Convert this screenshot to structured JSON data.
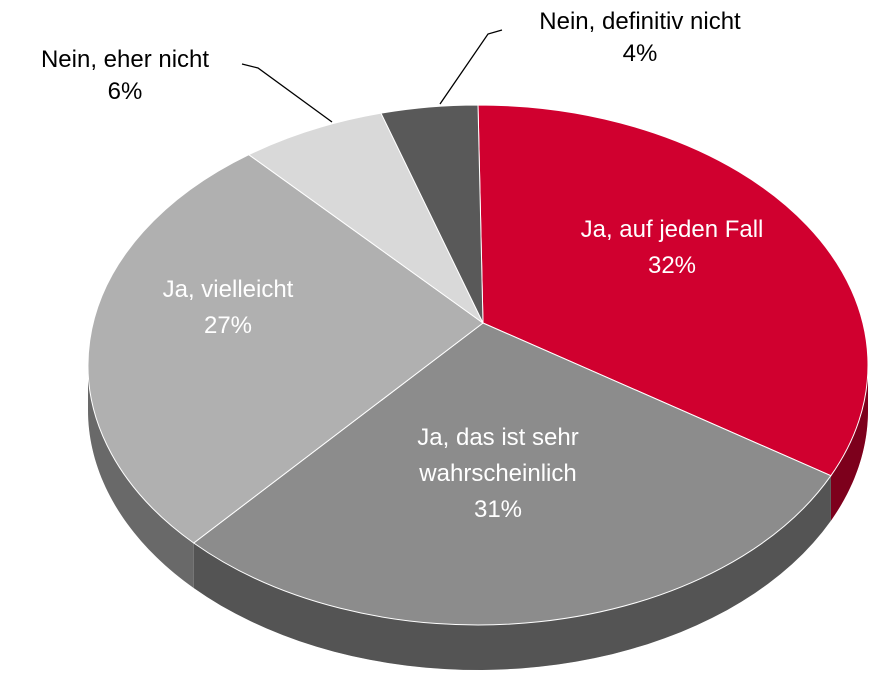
{
  "chart_data": {
    "type": "pie",
    "categories": [
      "Ja, auf jeden Fall",
      "Ja, das ist sehr wahrscheinlich",
      "Ja, vielleicht",
      "Nein, eher nicht",
      "Nein, definitiv nicht"
    ],
    "values": [
      32,
      31,
      27,
      6,
      4
    ],
    "value_labels": [
      "32%",
      "31%",
      "27%",
      "6%",
      "4%"
    ],
    "colors": [
      "#d0002f",
      "#8c8c8c",
      "#b0b0b0",
      "#d9d9d9",
      "#595959"
    ]
  }
}
